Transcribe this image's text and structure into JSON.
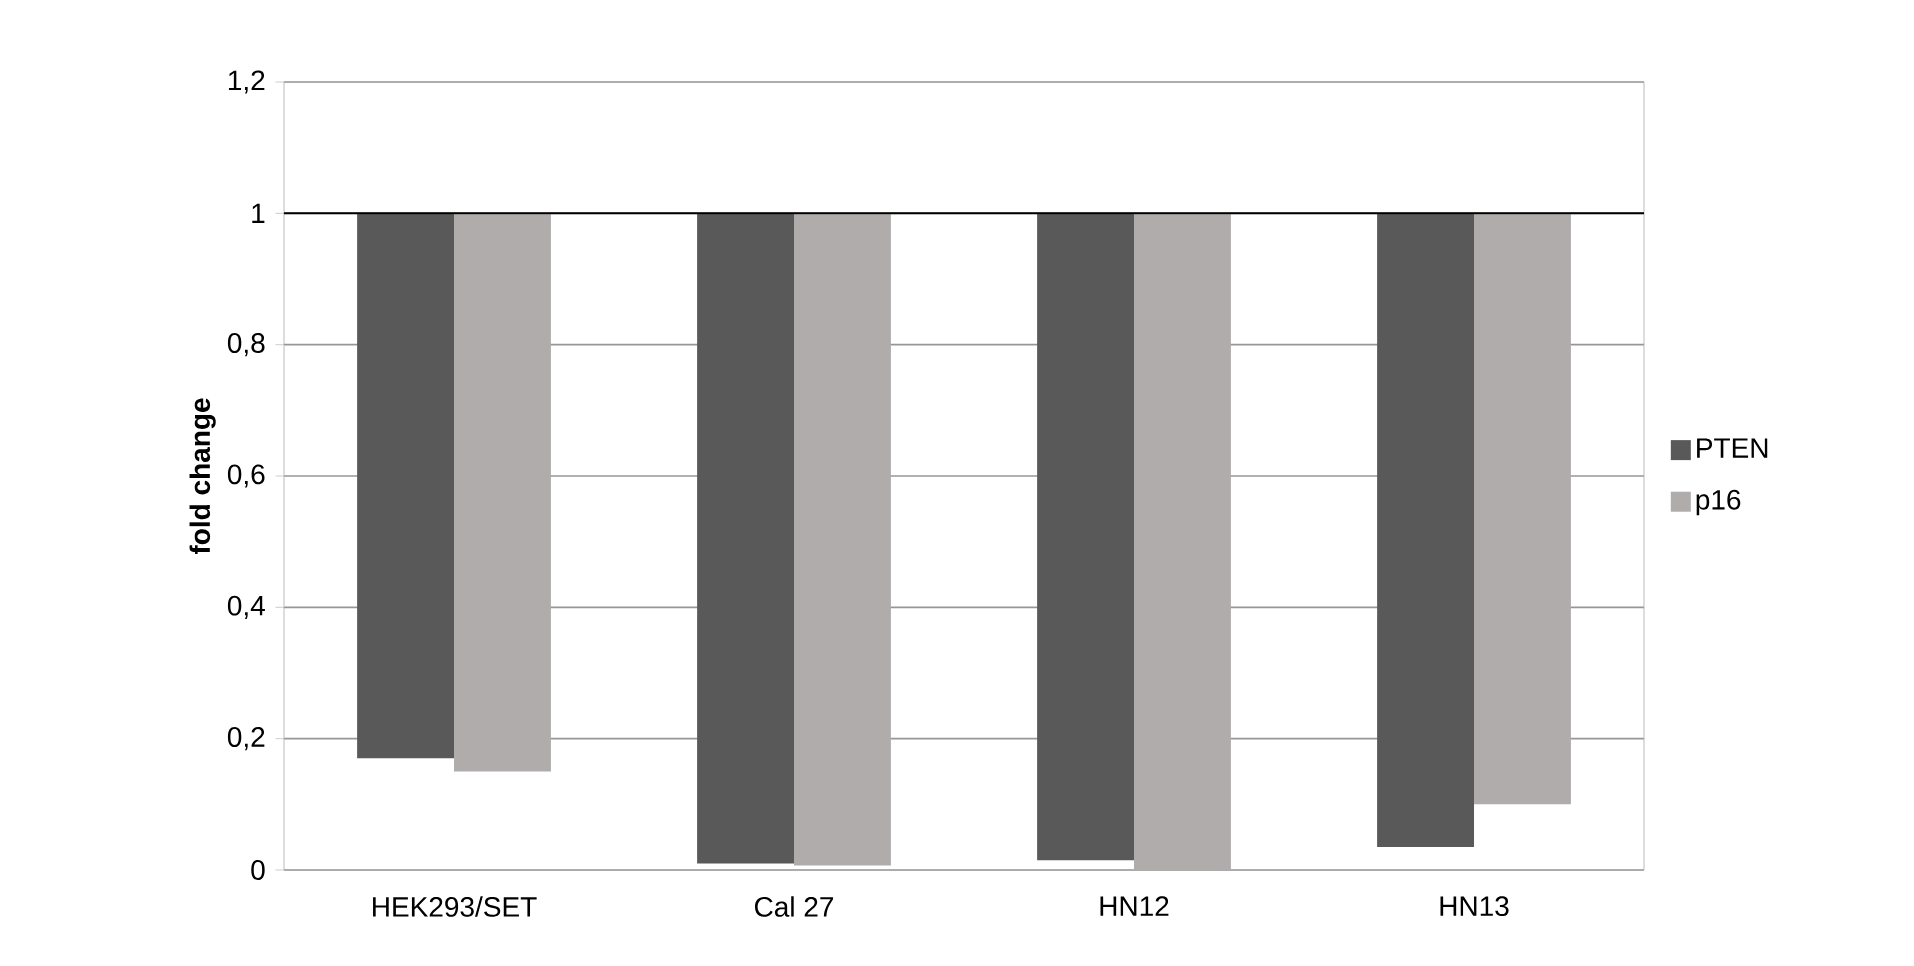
{
  "chart_data": {
    "type": "bar",
    "ylabel": "fold change",
    "categories": [
      "HEK293/SET",
      "Cal 27",
      "HN12",
      "HN13"
    ],
    "series": [
      {
        "name": "PTEN",
        "color": "#595959",
        "base": [
          1,
          1,
          1,
          1
        ],
        "values": [
          -0.83,
          -0.99,
          -0.985,
          -0.965
        ]
      },
      {
        "name": "p16",
        "color": "#afacab",
        "base": [
          1,
          1,
          1,
          1
        ],
        "values": [
          -0.85,
          -0.993,
          -1,
          -0.9
        ]
      }
    ],
    "ylim": [
      0,
      1.2
    ],
    "yticks": [
      0,
      {
        "value": 0.2,
        "label": "0,2"
      },
      {
        "value": 0.4,
        "label": "0,4"
      },
      {
        "value": 0.6,
        "label": "0,6"
      },
      {
        "value": 0.8,
        "label": "0,8"
      },
      1,
      {
        "value": 1.2,
        "label": "1,2"
      }
    ],
    "ref_lines": [
      {
        "axis": "y",
        "value": 1,
        "color": "#000000"
      }
    ],
    "grid": "y",
    "legend": "right"
  }
}
